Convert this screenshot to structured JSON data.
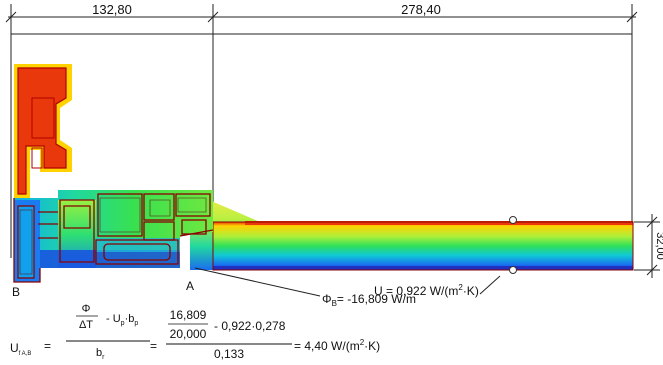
{
  "dimensions": {
    "top_left": "132,80",
    "top_right": "278,40",
    "right_height": "32,00"
  },
  "points": {
    "left": "B",
    "right": "A"
  },
  "annotations": {
    "u_value": "U = 0,922 W/(m",
    "u_sup": "2",
    "u_end": "·K)",
    "phi_main": "Φ",
    "phi_sub": "B",
    "phi_value": "= -16,809 W/m"
  },
  "formula": {
    "lhs_main": "U",
    "lhs_sub": "f A,B",
    "equals": "=",
    "phi": "Φ",
    "delta_t": "ΔT",
    "minus_up_bp": "-  U",
    "up_sub": "p",
    "dot_b": "·b",
    "bp_sub": "p",
    "denom_b": "b",
    "denom_sub": "r",
    "num_a": "16,809",
    "num_b": "20,000",
    "num_c": "-  0,922·0,278",
    "denom_value": "0,133",
    "result": "=  4,40 W/(m",
    "result_sup": "2",
    "result_end": "·K)"
  },
  "colors": {
    "hot": "#e8380c",
    "warm": "#ffd200",
    "mid": "#2ee05a",
    "cool": "#10c8d8",
    "cold": "#1a4fe0",
    "outline": "#b00000"
  }
}
